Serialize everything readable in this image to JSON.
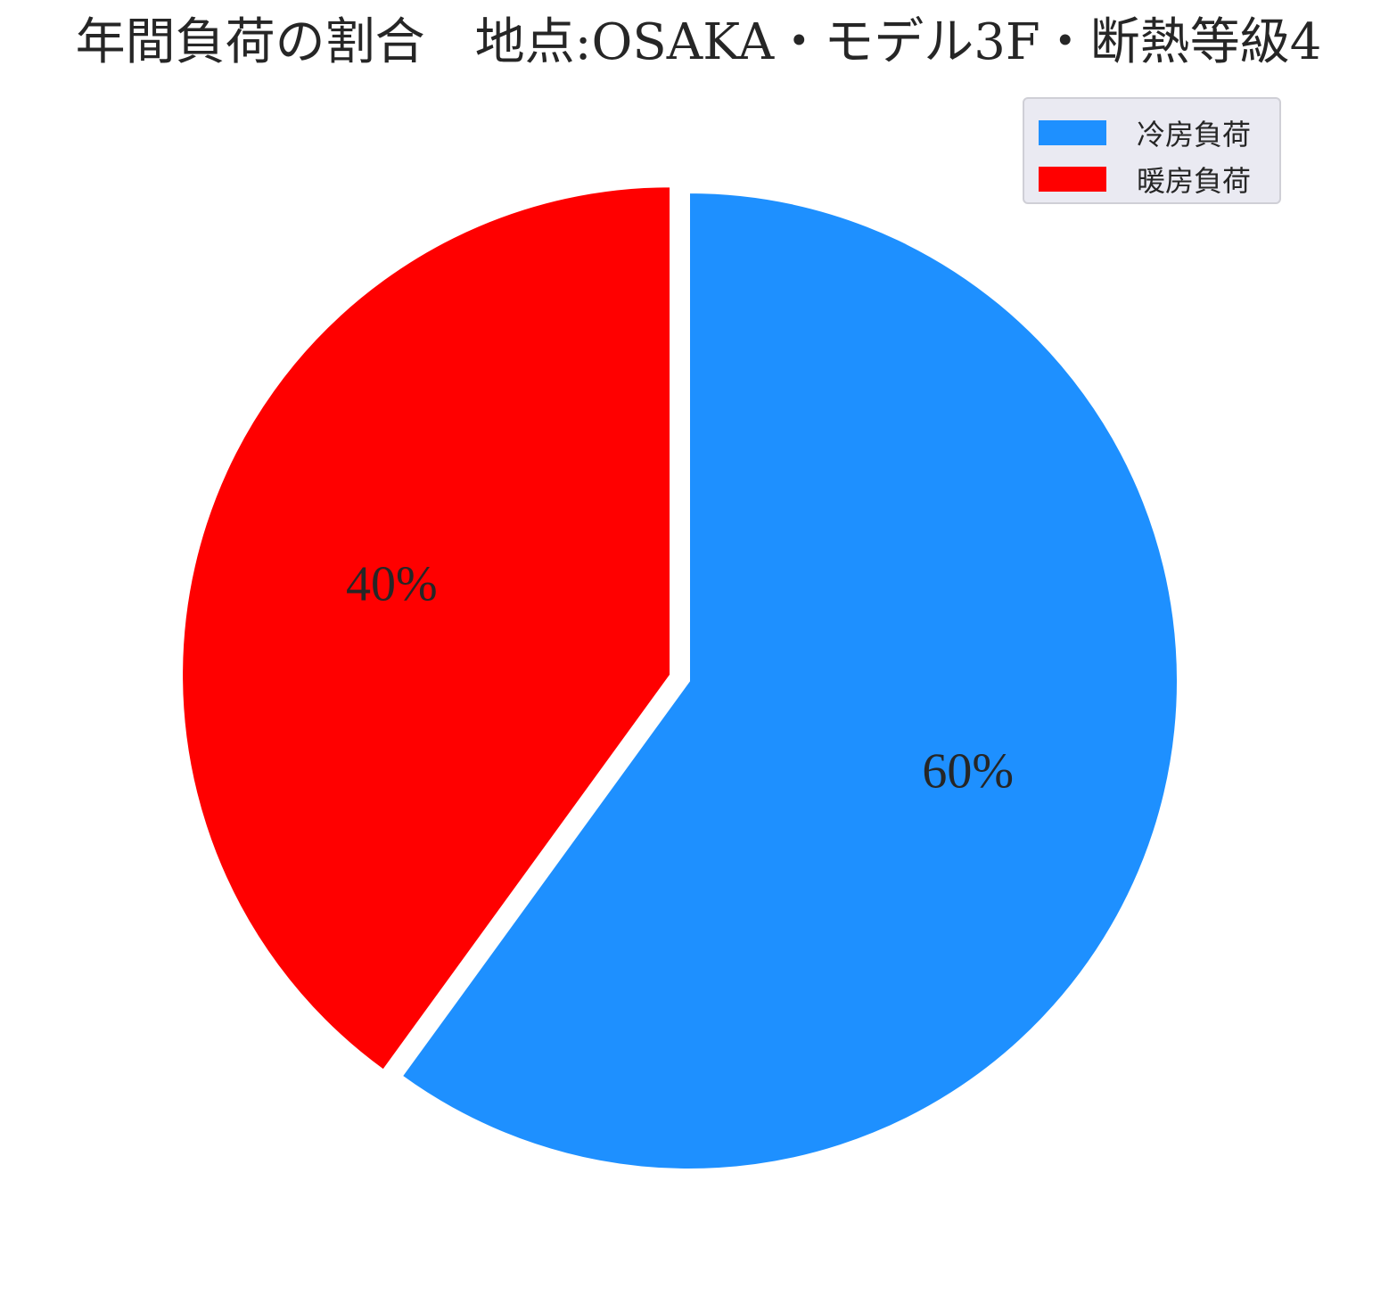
{
  "chart_data": {
    "type": "pie",
    "title": "年間負荷の割合　地点:OSAKA・モデル3F・断熱等級4",
    "slices": [
      {
        "label": "冷房負荷",
        "value": 60,
        "display": "60%",
        "color": "#1e90ff"
      },
      {
        "label": "暖房負荷",
        "value": 40,
        "display": "40%",
        "color": "#ff0000"
      }
    ],
    "start_angle_deg": 90,
    "direction": "clockwise",
    "exploded_slice": "暖房負荷",
    "legend": {
      "position": "top-right",
      "entries": [
        "冷房負荷",
        "暖房負荷"
      ]
    }
  }
}
